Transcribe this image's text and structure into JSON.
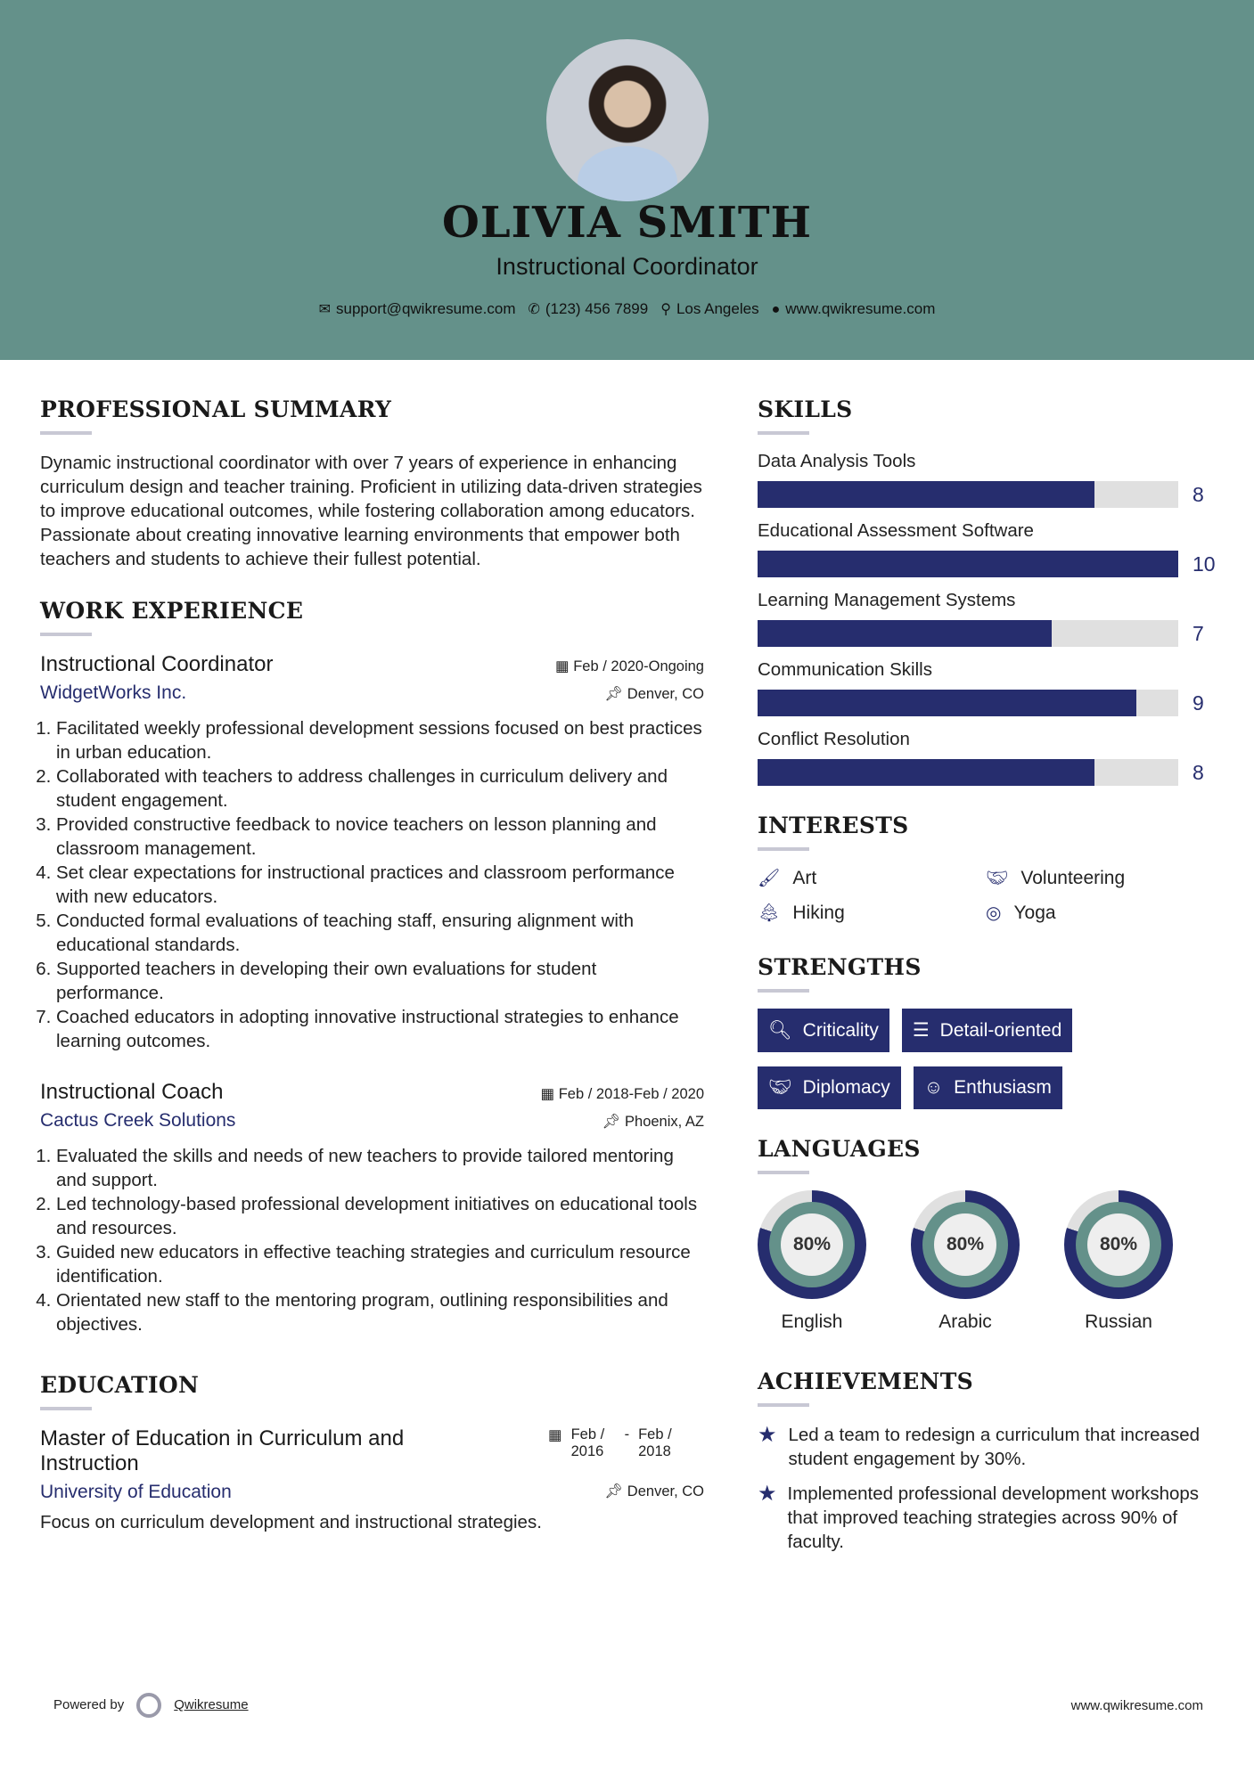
{
  "header": {
    "name": "OLIVIA SMITH",
    "title": "Instructional Coordinator",
    "contacts": [
      {
        "icon": "envelope-icon",
        "text": "support@qwikresume.com"
      },
      {
        "icon": "phone-icon",
        "text": "(123) 456 7899"
      },
      {
        "icon": "map-marker-icon",
        "text": "Los Angeles"
      },
      {
        "icon": "globe-icon",
        "text": "www.qwikresume.com"
      }
    ]
  },
  "summary": {
    "heading": "PROFESSIONAL SUMMARY",
    "text": "Dynamic instructional coordinator with over 7 years of experience in enhancing curriculum design and teacher training. Proficient in utilizing data-driven strategies to improve educational outcomes, while fostering collaboration among educators. Passionate about creating innovative learning environments that empower both teachers and students to achieve their fullest potential."
  },
  "experience": {
    "heading": "WORK EXPERIENCE",
    "jobs": [
      {
        "title": "Instructional Coordinator",
        "company": "WidgetWorks Inc.",
        "dates": "Feb / 2020-Ongoing",
        "location": "Denver, CO",
        "bullets": [
          "Facilitated weekly professional development sessions focused on best practices in urban education.",
          "Collaborated with teachers to address challenges in curriculum delivery and student engagement.",
          "Provided constructive feedback to novice teachers on lesson planning and classroom management.",
          "Set clear expectations for instructional practices and classroom performance with new educators.",
          "Conducted formal evaluations of teaching staff, ensuring alignment with educational standards.",
          "Supported teachers in developing their own evaluations for student performance.",
          "Coached educators in adopting innovative instructional strategies to enhance learning outcomes."
        ]
      },
      {
        "title": "Instructional Coach",
        "company": "Cactus Creek Solutions",
        "dates": "Feb / 2018-Feb / 2020",
        "location": "Phoenix, AZ",
        "bullets": [
          "Evaluated the skills and needs of new teachers to provide tailored mentoring and support.",
          "Led technology-based professional development initiatives on educational tools and resources.",
          "Guided new educators in effective teaching strategies and curriculum resource identification.",
          "Orientated new staff to the mentoring program, outlining responsibilities and objectives."
        ]
      }
    ]
  },
  "education": {
    "heading": "EDUCATION",
    "degree": "Master of Education in Curriculum and Instruction",
    "school": "University of Education",
    "start": "Feb / 2016",
    "end": "Feb / 2018",
    "location": "Denver, CO",
    "description": "Focus on curriculum development and instructional strategies."
  },
  "skills": {
    "heading": "SKILLS",
    "max": 10,
    "items": [
      {
        "name": "Data Analysis Tools",
        "value": 8
      },
      {
        "name": "Educational Assessment Software",
        "value": 10
      },
      {
        "name": "Learning Management Systems",
        "value": 7
      },
      {
        "name": "Communication Skills",
        "value": 9
      },
      {
        "name": "Conflict Resolution",
        "value": 8
      }
    ]
  },
  "interests": {
    "heading": "INTERESTS",
    "items": [
      {
        "icon": "paintbrush-icon",
        "label": "Art"
      },
      {
        "icon": "handshake-icon",
        "label": "Volunteering"
      },
      {
        "icon": "tree-icon",
        "label": "Hiking"
      },
      {
        "icon": "life-ring-icon",
        "label": "Yoga"
      }
    ]
  },
  "strengths": {
    "heading": "STRENGTHS",
    "items": [
      {
        "icon": "search-icon",
        "label": "Criticality"
      },
      {
        "icon": "list-icon",
        "label": "Detail-oriented"
      },
      {
        "icon": "handshake-icon",
        "label": "Diplomacy"
      },
      {
        "icon": "smile-icon",
        "label": "Enthusiasm"
      }
    ]
  },
  "languages": {
    "heading": "LANGUAGES",
    "items": [
      {
        "name": "English",
        "percent": 80,
        "label": "80%"
      },
      {
        "name": "Arabic",
        "percent": 80,
        "label": "80%"
      },
      {
        "name": "Russian",
        "percent": 80,
        "label": "80%"
      }
    ]
  },
  "achievements": {
    "heading": "ACHIEVEMENTS",
    "items": [
      "Led a team to redesign a curriculum that increased student engagement by 30%.",
      "Implemented professional development workshops that improved teaching strategies across 90% of faculty."
    ]
  },
  "footer": {
    "powered_by": "Powered by",
    "brand": "Qwikresume",
    "url": "www.qwikresume.com"
  },
  "colors": {
    "header": "#64918a",
    "accent": "#262d6e",
    "track": "#e0e0e0"
  }
}
